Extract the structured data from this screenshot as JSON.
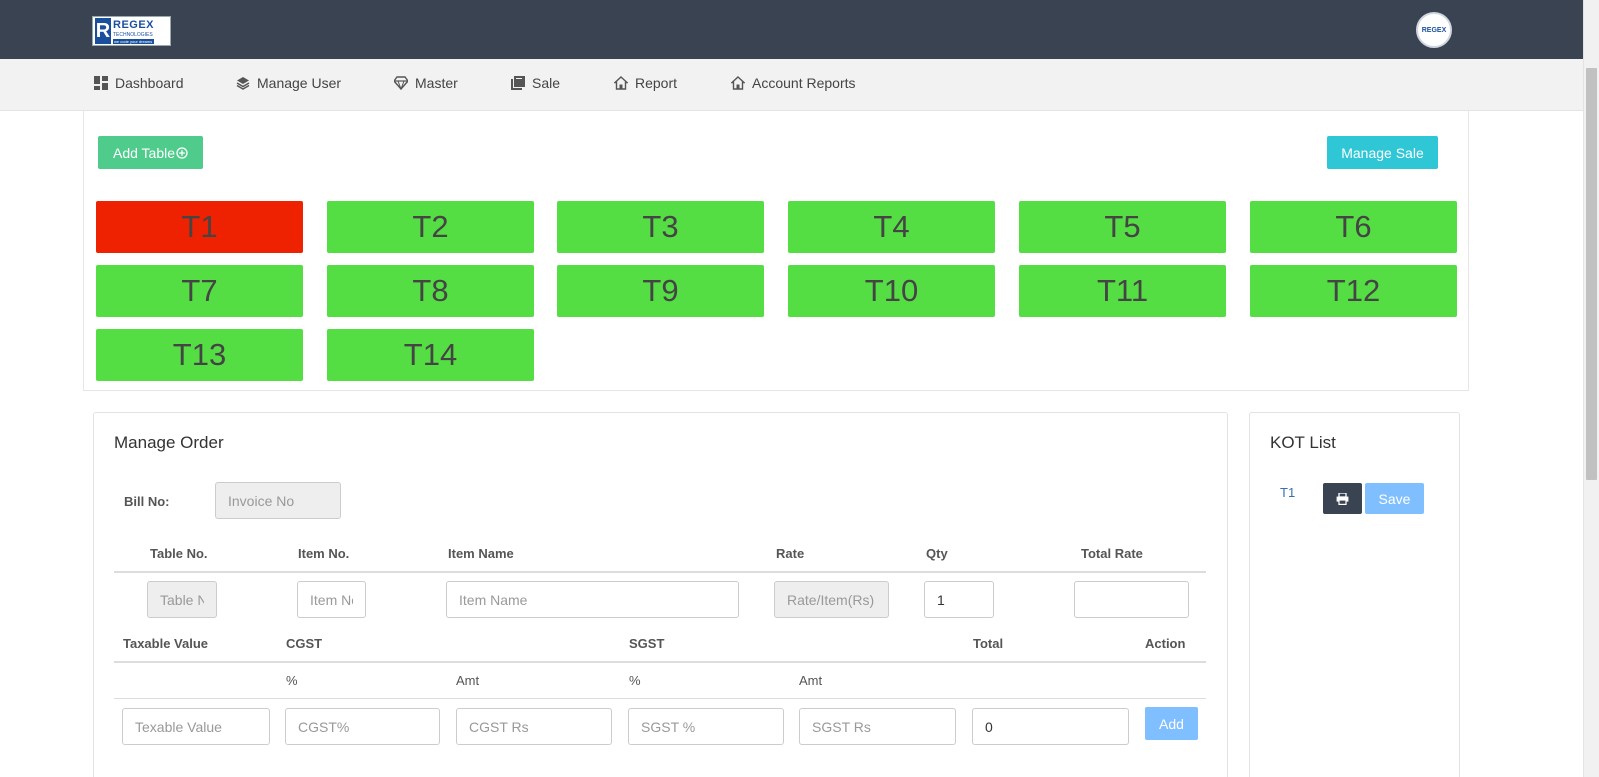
{
  "brand": {
    "name": "REGEX",
    "subtitle": "TECHNOLOGIES",
    "tagline": "we code your dreams",
    "avatar_text": "REGEX"
  },
  "nav": [
    {
      "label": "Dashboard",
      "icon": "dashboard-icon"
    },
    {
      "label": "Manage User",
      "icon": "layers-icon"
    },
    {
      "label": "Master",
      "icon": "diamond-icon"
    },
    {
      "label": "Sale",
      "icon": "book-icon"
    },
    {
      "label": "Report",
      "icon": "home-icon"
    },
    {
      "label": "Account Reports",
      "icon": "home-icon"
    }
  ],
  "actions": {
    "add_table": "Add Table",
    "manage_sale": "Manage Sale"
  },
  "tables": [
    {
      "label": "T1",
      "status": "occupied"
    },
    {
      "label": "T2",
      "status": "free"
    },
    {
      "label": "T3",
      "status": "free"
    },
    {
      "label": "T4",
      "status": "free"
    },
    {
      "label": "T5",
      "status": "free"
    },
    {
      "label": "T6",
      "status": "free"
    },
    {
      "label": "T7",
      "status": "free"
    },
    {
      "label": "T8",
      "status": "free"
    },
    {
      "label": "T9",
      "status": "free"
    },
    {
      "label": "T10",
      "status": "free"
    },
    {
      "label": "T11",
      "status": "free"
    },
    {
      "label": "T12",
      "status": "free"
    },
    {
      "label": "T13",
      "status": "free"
    },
    {
      "label": "T14",
      "status": "free"
    }
  ],
  "colors": {
    "occupied": "#ee2200",
    "free": "#55dd44",
    "header": "#3a4352"
  },
  "order": {
    "title": "Manage Order",
    "bill_label": "Bill No:",
    "bill_placeholder": "Invoice No",
    "headers": [
      "Table No.",
      "Item No.",
      "Item Name",
      "Rate",
      "Qty",
      "Total Rate"
    ],
    "placeholders": {
      "table_no": "Table No",
      "item_no": "Item No",
      "item_name": "Item Name",
      "rate": "Rate/Item(Rs)"
    },
    "qty_value": "1",
    "total_rate_value": "",
    "tax_headers": {
      "taxable": "Taxable Value",
      "cgst": "CGST",
      "sgst": "SGST",
      "total": "Total",
      "action": "Action"
    },
    "sub_headers": {
      "cgst_pct": "%",
      "cgst_amt": "Amt",
      "sgst_pct": "%",
      "sgst_amt": "Amt"
    },
    "tax_placeholders": {
      "taxable": "Texable Value",
      "cgst_pct": "CGST%",
      "cgst_rs": "CGST Rs",
      "sgst_pct": "SGST %",
      "sgst_rs": "SGST Rs"
    },
    "total_value": "0",
    "add_label": "Add"
  },
  "kot": {
    "title": "KOT List",
    "table": "T1",
    "save_label": "Save"
  }
}
